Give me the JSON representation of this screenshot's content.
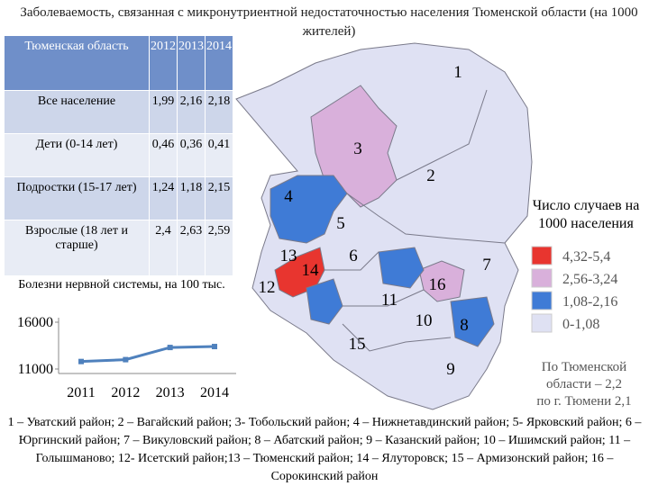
{
  "title": "Заболеваемость, связанная с микронутриентной недостаточностью населения Тюменской области (на 1000 жителей)",
  "table": {
    "header": [
      "Тюменская область",
      "2012",
      "2013",
      "2014"
    ],
    "rows": [
      [
        "Все население",
        "1,99",
        "2,16",
        "2,18"
      ],
      [
        "Дети (0-14 лет)",
        "0,46",
        "0,36",
        "0,41"
      ],
      [
        "Подростки (15-17 лет)",
        "1,24",
        "1,18",
        "2,15"
      ],
      [
        "Взрослые (18 лет и старше)",
        "2,4",
        "2,63",
        "2,59"
      ]
    ]
  },
  "chart_data": {
    "type": "line",
    "title": "Болезни нервной системы, на 100 тыс.",
    "categories": [
      "2011",
      "2012",
      "2013",
      "2014"
    ],
    "values": [
      11800,
      12000,
      13300,
      13400
    ],
    "color": "#4f81bd",
    "ylim": [
      11000,
      16000
    ],
    "yticks": [
      11000,
      16000
    ]
  },
  "map": {
    "labels": [
      "1",
      "2",
      "3",
      "4",
      "5",
      "6",
      "7",
      "8",
      "9",
      "10",
      "11",
      "12",
      "13",
      "14",
      "15",
      "16"
    ]
  },
  "legend": {
    "title": [
      "Число случаев на",
      "1000 населения"
    ],
    "items": [
      {
        "label": "4,32-5,4",
        "color": "#e8352f"
      },
      {
        "label": "2,56-3,24",
        "color": "#d9b0db"
      },
      {
        "label": "1,08-2,16",
        "color": "#3f7bd6"
      },
      {
        "label": "0-1,08",
        "color": "#dfe1f3"
      }
    ]
  },
  "note": [
    "По Тюменской",
    "области – 2,2",
    "по г. Тюмени 2,1"
  ],
  "footer": "1 – Уватский район; 2 – Вагайский район; 3- Тобольский район; 4 – Нижнетавдинский район; 5- Ярковский район; 6 – Юргинский район; 7 – Викуловский район;  8 – Абатский район; 9 – Казанский район; 10 – Ишимский район; 11 – Голышманово; 12- Исетский район;13 – Тюменский район; 14 – Ялуторовск; 15 – Армизонский район; 16 – Сорокинский район"
}
